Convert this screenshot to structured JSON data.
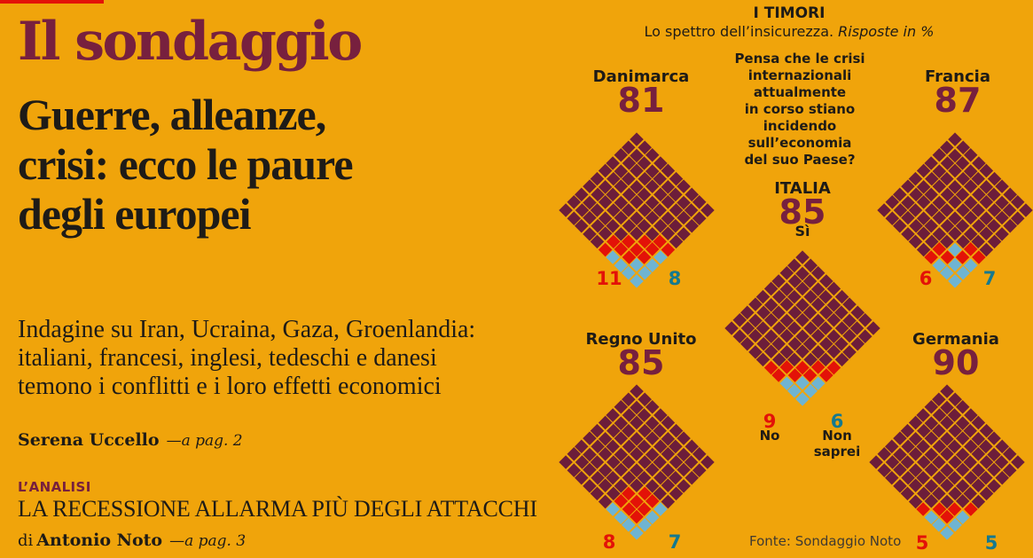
{
  "colors": {
    "background": "#F0A40B",
    "si": "#6C1D3A",
    "no": "#E31208",
    "non_saprei": "#6FB4D2",
    "maroon_text": "#77203E",
    "teal_text": "#15798F",
    "ink": "#1E1B17",
    "red_bar": "#E31208"
  },
  "left_column": {
    "kicker": "Il sondaggio",
    "headline": "Guerre, alleanze,\ncrisi: ecco le paure\ndegli europei",
    "dek": "Indagine su Iran, Ucraina, Gaza, Groenlandia:\nitaliani, francesi, inglesi, tedeschi e danesi\ntemono i conflitti e i loro effetti economici",
    "byline_name": "Serena Uccello",
    "byline_ref": "—a pag. 2",
    "analysis_kicker": "L’ANALISI",
    "analysis_title": "LA RECESSIONE ALLARMA PIÙ DEGLI ATTACCHI",
    "analysis_byline_prefix": "di",
    "analysis_byline_name": "Antonio Noto",
    "analysis_byline_ref": "—a pag. 3"
  },
  "infographic": {
    "title": "I TIMORI",
    "subtitle": "Lo spettro dell’insicurezza.",
    "subtitle_italic": "Risposte in %",
    "question": "Pensa che le crisi\ninternazionali attualmente\nin corso stiano incidendo\nsull’economia\ndel suo Paese?",
    "source": "Fonte: Sondaggio Noto",
    "charts": [
      {
        "name": "Danimarca",
        "value": "81",
        "no_value": "11",
        "dk_value": "8",
        "grid": [
          "MMMMMMMMMM",
          "MMMMMMMMMM",
          "MMMMMMMMMM",
          "MMMMMMMMMM",
          "MMMMMMMMMM",
          "MMMMMMMMRR",
          "MMMMMMMRRB",
          "MMMMMMRRRB",
          "MMMMMRRRBB",
          "MMMMMRBBBB"
        ]
      },
      {
        "name": "Francia",
        "value": "87",
        "no_value": "6",
        "dk_value": "7",
        "grid": [
          "MMMMMMMMMM",
          "MMMMMMMMMM",
          "MMMMMMMMMM",
          "MMMMMMMMMM",
          "MMMMMMMMMM",
          "MMMMMMMMMM",
          "MMMMMMMMRR",
          "MMMMMMMBRB",
          "MMMMMMRRBB",
          "MMMMMMRBBB"
        ]
      },
      {
        "name": "ITALIA",
        "value": "85",
        "yes_label": "Sì",
        "no_value": "9",
        "no_label": "No",
        "dk_value": "6",
        "dk_label": "Non\nsaprei",
        "grid": [
          "MMMMMMMMMM",
          "MMMMMMMMMM",
          "MMMMMMMMMM",
          "MMMMMMMMMM",
          "MMMMMMMMMM",
          "MMMMMMMMMR",
          "MMMMMMMMRR",
          "MMMMMMMRRB",
          "MMMMMMRRBB",
          "MMMMMRRBBB"
        ]
      },
      {
        "name": "Regno Unito",
        "value": "85",
        "no_value": "8",
        "dk_value": "7",
        "grid": [
          "MMMMMMMMMM",
          "MMMMMMMMMM",
          "MMMMMMMMMM",
          "MMMMMMMMMM",
          "MMMMMMMMMM",
          "MMMMMMMMMM",
          "MMMMMMMRRB",
          "MMMMMMRRRB",
          "MMMMMMRRRB",
          "MMMMMMBBBB"
        ]
      },
      {
        "name": "Germania",
        "value": "90",
        "no_value": "5",
        "dk_value": "5",
        "grid": [
          "MMMMMMMMMM",
          "MMMMMMMMMM",
          "MMMMMMMMMM",
          "MMMMMMMMMM",
          "MMMMMMMMMM",
          "MMMMMMMMMM",
          "MMMMMMMMMR",
          "MMMMMMMMRB",
          "MMMMMMMRRB",
          "MMMMMMRBBB"
        ]
      }
    ]
  },
  "chart_data": {
    "type": "waffle",
    "title": "I TIMORI",
    "subtitle": "Lo spettro dell’insicurezza. Risposte in %",
    "question": "Pensa che le crisi internazionali attualmente in corso stiano incidendo sull’economia del suo Paese?",
    "unit": "%",
    "categories": [
      "Sì",
      "No",
      "Non saprei"
    ],
    "series": [
      {
        "name": "Danimarca",
        "values": [
          81,
          11,
          8
        ]
      },
      {
        "name": "Francia",
        "values": [
          87,
          6,
          7
        ]
      },
      {
        "name": "Italia",
        "values": [
          85,
          9,
          6
        ]
      },
      {
        "name": "Regno Unito",
        "values": [
          85,
          8,
          7
        ]
      },
      {
        "name": "Germania",
        "values": [
          90,
          5,
          5
        ]
      }
    ],
    "colors": {
      "Sì": "#6C1D3A",
      "No": "#E31208",
      "Non saprei": "#6FB4D2"
    },
    "layout": "10x10 grid rotated 45°, Sì filled from top, No band, Non saprei at bottom tip",
    "source": "Fonte: Sondaggio Noto"
  }
}
